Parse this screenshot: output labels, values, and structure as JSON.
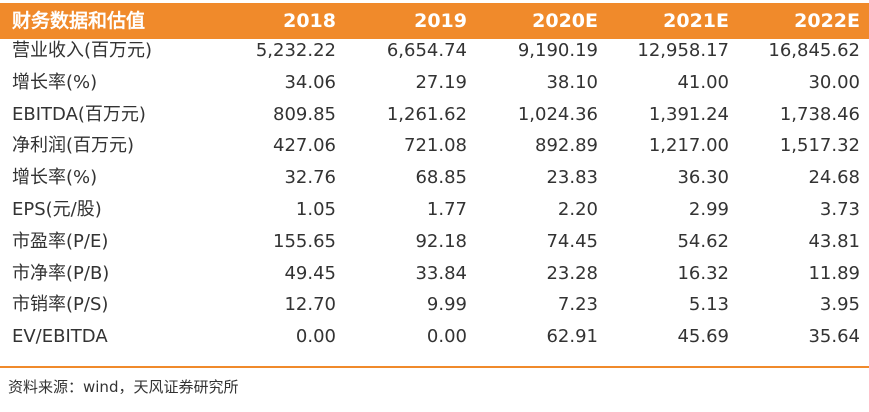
{
  "table": {
    "header": [
      "财务数据和估值",
      "2018",
      "2019",
      "2020E",
      "2021E",
      "2022E"
    ],
    "rows": [
      [
        "营业收入(百万元)",
        "5,232.22",
        "6,654.74",
        "9,190.19",
        "12,958.17",
        "16,845.62"
      ],
      [
        "增长率(%)",
        "34.06",
        "27.19",
        "38.10",
        "41.00",
        "30.00"
      ],
      [
        "EBITDA(百万元)",
        "809.85",
        "1,261.62",
        "1,024.36",
        "1,391.24",
        "1,738.46"
      ],
      [
        "净利润(百万元)",
        "427.06",
        "721.08",
        "892.89",
        "1,217.00",
        "1,517.32"
      ],
      [
        "增长率(%)",
        "32.76",
        "68.85",
        "23.83",
        "36.30",
        "24.68"
      ],
      [
        "EPS(元/股)",
        "1.05",
        "1.77",
        "2.20",
        "2.99",
        "3.73"
      ],
      [
        "市盈率(P/E)",
        "155.65",
        "92.18",
        "74.45",
        "54.62",
        "43.81"
      ],
      [
        "市净率(P/B)",
        "49.45",
        "33.84",
        "23.28",
        "16.32",
        "11.89"
      ],
      [
        "市销率(P/S)",
        "12.70",
        "9.99",
        "7.23",
        "5.13",
        "3.95"
      ],
      [
        "EV/EBITDA",
        "0.00",
        "0.00",
        "62.91",
        "45.69",
        "35.64"
      ]
    ]
  },
  "source": "资料来源：wind，天风证券研究所"
}
